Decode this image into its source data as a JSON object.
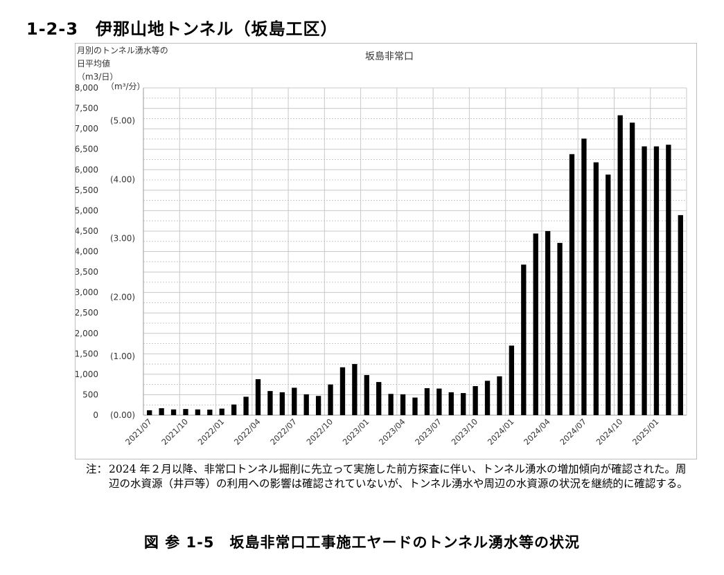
{
  "section_heading": "1-2-3　伊那山地トンネル（坂島工区）",
  "note": {
    "label": "注：",
    "text": "2024 年２月以降、非常口トンネル掘削に先立って実施した前方探査に伴い、トンネル湧水の増加傾向が確認された。周辺の水資源（井戸等）の利用への影響は確認されていないが、トンネル湧水や周辺の水資源の状況を継続的に確認する。"
  },
  "figure_caption": "図 参 1-5　坂島非常口工事施工ヤードのトンネル湧水等の状況",
  "colors": {
    "bar": "#000000",
    "grid": "#c8c8c8",
    "axis": "#9a9a9a",
    "text": "#333333"
  },
  "chart_data": {
    "type": "bar",
    "title": "坂島非常口",
    "ylabel_lines": [
      "月別のトンネル湧水等の",
      "日平均値",
      "（m3/日）"
    ],
    "ylabel_secondary": "（m³/分）",
    "ylim": [
      0,
      8000
    ],
    "yticks": [
      0,
      500,
      1000,
      1500,
      2000,
      2500,
      3000,
      3500,
      4000,
      4500,
      5000,
      5500,
      6000,
      6500,
      7000,
      7500,
      8000
    ],
    "ytick_labels": [
      "0",
      "500",
      "1,000",
      "1,500",
      "2,000",
      "2,500",
      "3,000",
      "3,500",
      "4,000",
      "4,500",
      "5,000",
      "5,500",
      "6,000",
      "6,500",
      "7,000",
      "7,500",
      "8,000"
    ],
    "secondary_ticks": [
      0,
      1,
      2,
      3,
      4,
      5
    ],
    "secondary_tick_labels": [
      "(0.00)",
      "(1.00)",
      "(2.00)",
      "(3.00)",
      "(4.00)",
      "(5.00)"
    ],
    "categories": [
      "2021/07",
      "2021/08",
      "2021/09",
      "2021/10",
      "2021/11",
      "2021/12",
      "2022/01",
      "2022/02",
      "2022/03",
      "2022/04",
      "2022/05",
      "2022/06",
      "2022/07",
      "2022/08",
      "2022/09",
      "2022/10",
      "2022/11",
      "2022/12",
      "2023/01",
      "2023/02",
      "2023/03",
      "2023/04",
      "2023/05",
      "2023/06",
      "2023/07",
      "2023/08",
      "2023/09",
      "2023/10",
      "2023/11",
      "2023/12",
      "2024/01",
      "2024/02",
      "2024/03",
      "2024/04",
      "2024/05",
      "2024/06",
      "2024/07",
      "2024/08",
      "2024/09",
      "2024/10",
      "2024/11",
      "2024/12",
      "2025/01",
      "2025/02",
      "2025/03"
    ],
    "x_tick_labels": [
      "2021/07",
      "2021/10",
      "2022/01",
      "2022/04",
      "2022/07",
      "2022/10",
      "2023/01",
      "2023/04",
      "2023/07",
      "2023/10",
      "2024/01",
      "2024/04",
      "2024/07",
      "2024/10",
      "2025/01"
    ],
    "values": [
      120,
      170,
      140,
      150,
      140,
      135,
      160,
      260,
      450,
      880,
      590,
      560,
      670,
      510,
      470,
      750,
      1170,
      1250,
      980,
      810,
      520,
      510,
      430,
      660,
      650,
      560,
      540,
      710,
      840,
      950,
      1700,
      3680,
      4440,
      4500,
      4210,
      6380,
      6760,
      6180,
      5880,
      7330,
      7150,
      6570,
      6570,
      6610,
      4890
    ]
  }
}
